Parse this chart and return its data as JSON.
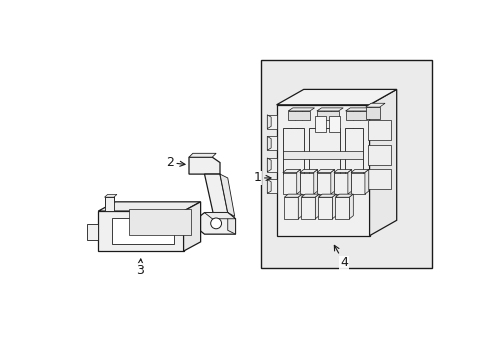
{
  "background_color": "#ffffff",
  "box_bg": "#ebebeb",
  "line_color": "#1a1a1a",
  "fig_width": 4.89,
  "fig_height": 3.6,
  "dpi": 100,
  "part_fill": "#f5f5f5",
  "part_edge": "#1a1a1a"
}
